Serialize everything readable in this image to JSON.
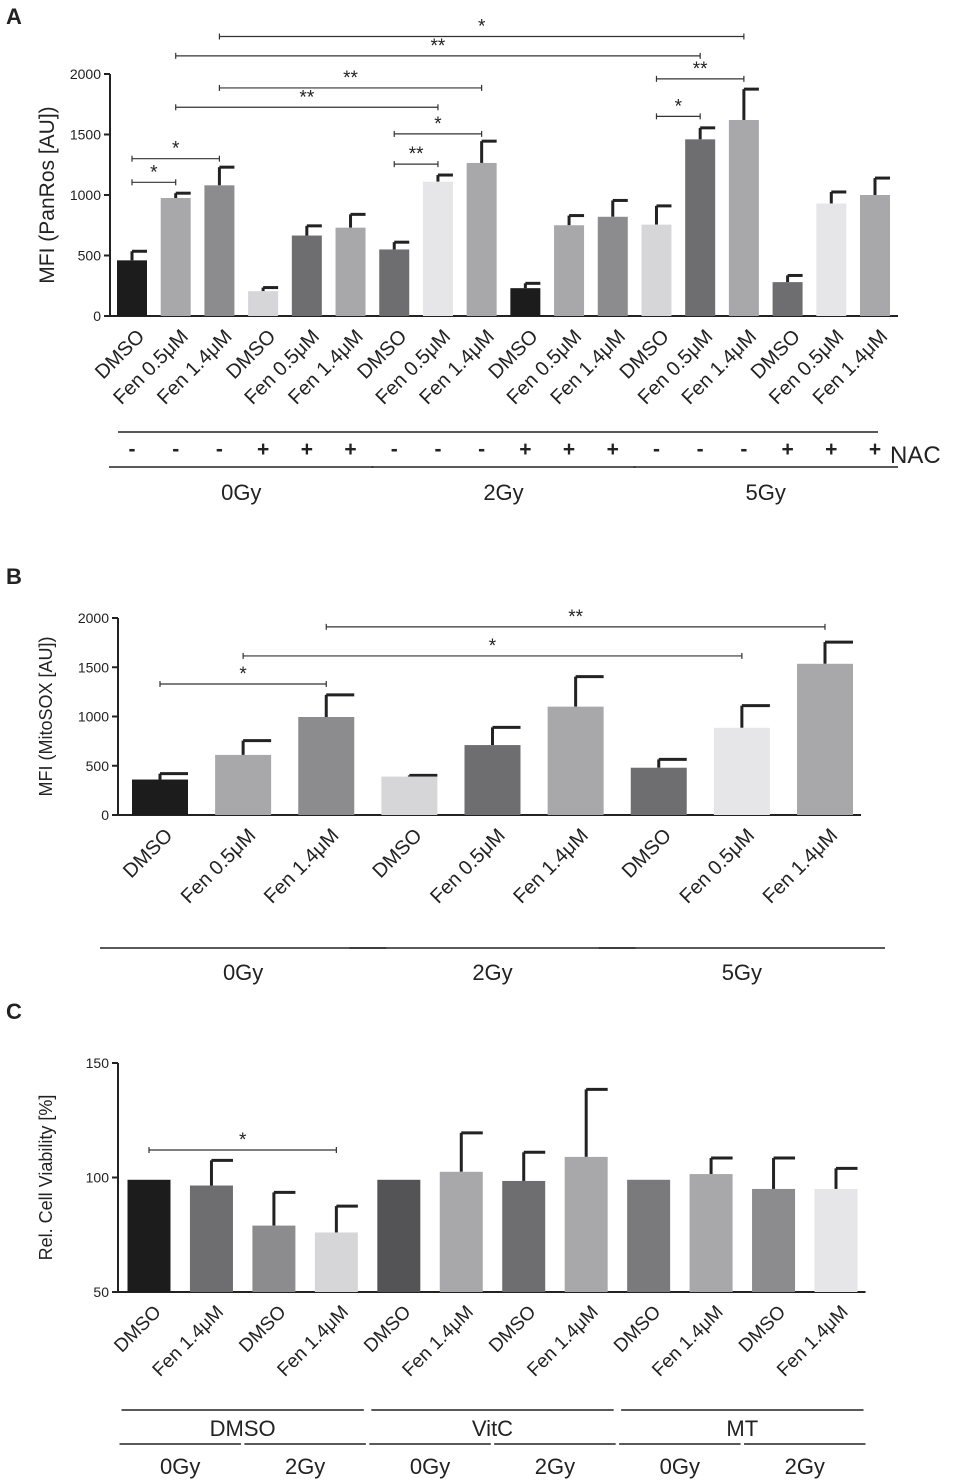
{
  "chart_data": [
    {
      "panel": "A",
      "type": "bar",
      "ylabel": "MFI (PanRos [AU])",
      "ylim": [
        0,
        2000
      ],
      "yticks": [
        0,
        500,
        1000,
        1500,
        2000
      ],
      "categories": [
        "DMSO",
        "Fen 0.5μM",
        "Fen 1.4μM",
        "DMSO",
        "Fen 0.5μM",
        "Fen 1.4μM",
        "DMSO",
        "Fen 0.5μM",
        "Fen 1.4μM",
        "DMSO",
        "Fen 0.5μM",
        "Fen 1.4μM",
        "DMSO",
        "Fen 0.5μM",
        "Fen 1.4μM",
        "DMSO",
        "Fen 0.5μM",
        "Fen 1.4μM"
      ],
      "values": [
        460,
        975,
        1080,
        205,
        665,
        730,
        550,
        1110,
        1265,
        230,
        750,
        820,
        755,
        1460,
        1620,
        280,
        930,
        1000
      ],
      "errors": [
        75,
        40,
        150,
        30,
        80,
        110,
        60,
        55,
        180,
        40,
        80,
        135,
        155,
        95,
        255,
        55,
        95,
        140
      ],
      "colors": [
        "#1c1c1c",
        "#a8a8aa",
        "#8c8c8e",
        "#d6d6d8",
        "#6e6e70",
        "#a8a8aa",
        "#6e6e70",
        "#e6e6e8",
        "#a8a8aa",
        "#1c1c1c",
        "#a8a8aa",
        "#8c8c8e",
        "#d6d6d8",
        "#6e6e70",
        "#a8a8aa",
        "#6e6e70",
        "#e6e6e8",
        "#a8a8aa"
      ],
      "nac_label": "NAC",
      "nac": [
        "-",
        "-",
        "-",
        "+",
        "+",
        "+",
        "-",
        "-",
        "-",
        "+",
        "+",
        "+",
        "-",
        "-",
        "-",
        "+",
        "+",
        "+"
      ],
      "groups": [
        {
          "label": "0Gy",
          "start": 0,
          "end": 5
        },
        {
          "label": "2Gy",
          "start": 6,
          "end": 11
        },
        {
          "label": "5Gy",
          "start": 12,
          "end": 17
        }
      ],
      "significance": [
        {
          "from": 0,
          "to": 1,
          "y": 1105,
          "label": "*"
        },
        {
          "from": 0,
          "to": 2,
          "y": 1300,
          "label": "*"
        },
        {
          "from": 6,
          "to": 7,
          "y": 1255,
          "label": "**"
        },
        {
          "from": 6,
          "to": 8,
          "y": 1505,
          "label": "*"
        },
        {
          "from": 1,
          "to": 7,
          "y": 1725,
          "label": "**"
        },
        {
          "from": 2,
          "to": 8,
          "y": 1885,
          "label": "**"
        },
        {
          "from": 12,
          "to": 13,
          "y": 1650,
          "label": "*"
        },
        {
          "from": 12,
          "to": 14,
          "y": 1960,
          "label": "**"
        },
        {
          "from": 1,
          "to": 13,
          "y": 2150,
          "label": "**"
        },
        {
          "from": 2,
          "to": 14,
          "y": 2310,
          "label": "*"
        }
      ]
    },
    {
      "panel": "B",
      "type": "bar",
      "ylabel": "MFI (MitoSOX [AU])",
      "ylim": [
        0,
        2000
      ],
      "yticks": [
        0,
        500,
        1000,
        1500,
        2000
      ],
      "categories": [
        "DMSO",
        "Fen 0.5μM",
        "Fen 1.4μM",
        "DMSO",
        "Fen 0.5μM",
        "Fen 1.4μM",
        "DMSO",
        "Fen 0.5μM",
        "Fen 1.4μM"
      ],
      "values": [
        360,
        610,
        995,
        390,
        710,
        1100,
        480,
        885,
        1535
      ],
      "errors": [
        60,
        145,
        225,
        12,
        180,
        305,
        85,
        225,
        220
      ],
      "colors": [
        "#1c1c1c",
        "#a8a8aa",
        "#8c8c8e",
        "#d6d6d8",
        "#6e6e70",
        "#a8a8aa",
        "#6e6e70",
        "#e6e6e8",
        "#a8a8aa"
      ],
      "groups": [
        {
          "label": "0Gy",
          "start": 0,
          "end": 2
        },
        {
          "label": "2Gy",
          "start": 3,
          "end": 5
        },
        {
          "label": "5Gy",
          "start": 6,
          "end": 8
        }
      ],
      "significance": [
        {
          "from": 0,
          "to": 2,
          "y": 1330,
          "label": "*"
        },
        {
          "from": 1,
          "to": 7,
          "y": 1615,
          "label": "*"
        },
        {
          "from": 2,
          "to": 8,
          "y": 1910,
          "label": "**"
        }
      ]
    },
    {
      "panel": "C",
      "type": "bar",
      "ylabel": "Rel. Cell Viability [%]",
      "ylim": [
        50,
        150
      ],
      "yticks": [
        50,
        100,
        150
      ],
      "categories": [
        "DMSO",
        "Fen 1.4μM",
        "DMSO",
        "Fen 1.4μM",
        "DMSO",
        "Fen 1.4μM",
        "DMSO",
        "Fen 1.4μM",
        "DMSO",
        "Fen 1.4μM",
        "DMSO",
        "Fen 1.4μM"
      ],
      "values": [
        99,
        96.5,
        79,
        76,
        99,
        102.5,
        98.5,
        109,
        99,
        101.5,
        95,
        95
      ],
      "errors": [
        0,
        11,
        14.5,
        11.5,
        0,
        17,
        12.5,
        29.5,
        0,
        7,
        13.5,
        9
      ],
      "colors": [
        "#1c1c1c",
        "#6e6e70",
        "#8c8c8e",
        "#d6d6d8",
        "#545456",
        "#a8a8aa",
        "#6e6e70",
        "#a8a8aa",
        "#7a7a7c",
        "#a8a8aa",
        "#8c8c8e",
        "#e6e6e8"
      ],
      "groups": [
        {
          "label": "DMSO",
          "start": 0,
          "end": 3
        },
        {
          "label": "VitC",
          "start": 4,
          "end": 7
        },
        {
          "label": "MT",
          "start": 8,
          "end": 11
        }
      ],
      "subgroups": [
        {
          "label": "0Gy",
          "start": 0,
          "end": 1
        },
        {
          "label": "2Gy",
          "start": 2,
          "end": 3
        },
        {
          "label": "0Gy",
          "start": 4,
          "end": 5
        },
        {
          "label": "2Gy",
          "start": 6,
          "end": 7
        },
        {
          "label": "0Gy",
          "start": 8,
          "end": 9
        },
        {
          "label": "2Gy",
          "start": 10,
          "end": 11
        }
      ],
      "significance": [
        {
          "from": 0,
          "to": 3,
          "y": 112,
          "label": "*"
        }
      ]
    }
  ]
}
